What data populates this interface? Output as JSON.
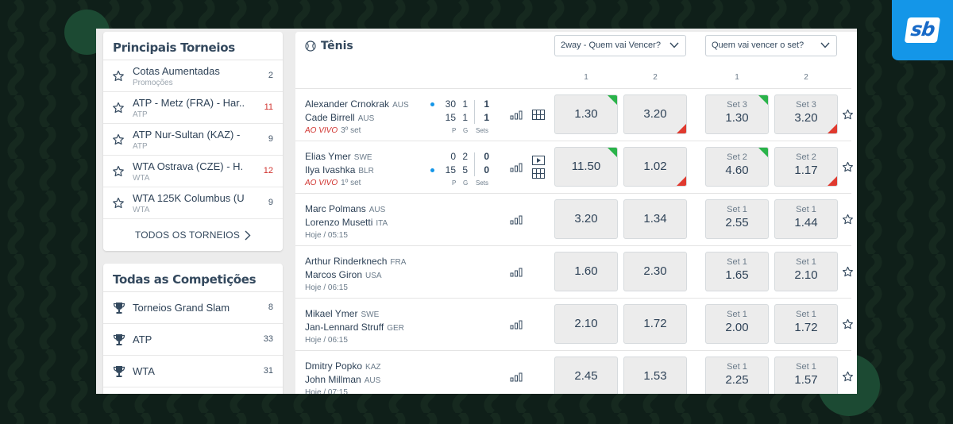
{
  "brand": {
    "logo": "sb",
    "color": "#1496e8"
  },
  "tournaments_panel": {
    "title": "Principais Torneios",
    "items": [
      {
        "name": "Cotas Aumentadas",
        "sub": "Promoções",
        "count": "2",
        "count_color": "normal"
      },
      {
        "name": "ATP - Metz (FRA) - Har...",
        "sub": "ATP",
        "count": "11",
        "count_color": "red"
      },
      {
        "name": "ATP Nur-Sultan (KAZ) - ...",
        "sub": "ATP",
        "count": "9",
        "count_color": "normal"
      },
      {
        "name": "WTA Ostrava (CZE) - H...",
        "sub": "WTA",
        "count": "12",
        "count_color": "red"
      },
      {
        "name": "WTA 125K Columbus (U...",
        "sub": "WTA",
        "count": "9",
        "count_color": "normal"
      }
    ],
    "all_label": "TODOS OS TORNEIOS"
  },
  "competitions_panel": {
    "title": "Todas as Competições",
    "items": [
      {
        "name": "Torneios Grand Slam",
        "count": "8"
      },
      {
        "name": "ATP",
        "count": "33"
      },
      {
        "name": "WTA",
        "count": "31"
      }
    ]
  },
  "main": {
    "title": "Tênis",
    "dropdown1": "2way - Quem vai Vencer?",
    "dropdown2": "Quem vai vencer o set?",
    "col_heads": [
      "1",
      "2",
      "1",
      "2"
    ],
    "score_labels": {
      "p": "P",
      "g": "G",
      "sets": "Sets"
    },
    "matches": [
      {
        "p1": "Alexander Crnokrak",
        "c1": "AUS",
        "p2": "Cade Birrell",
        "c2": "AUS",
        "live": "AO VIVO",
        "status": "3º set",
        "score1": {
          "p": "30",
          "g": "1",
          "s": "1"
        },
        "score2": {
          "p": "15",
          "g": "1",
          "s": "1"
        },
        "serve": 1,
        "odd1": "1.30",
        "odd2": "3.20",
        "set_label": "Set 3",
        "set1": "1.30",
        "set2": "3.20"
      },
      {
        "p1": "Elias Ymer",
        "c1": "SWE",
        "p2": "Ilya Ivashka",
        "c2": "BLR",
        "live": "AO VIVO",
        "status": "1º set",
        "score1": {
          "p": "0",
          "g": "2",
          "s": "0"
        },
        "score2": {
          "p": "15",
          "g": "5",
          "s": "0"
        },
        "serve": 2,
        "odd1": "11.50",
        "odd2": "1.02",
        "set_label": "Set 2",
        "set1": "4.60",
        "set2": "1.17"
      },
      {
        "p1": "Marc Polmans",
        "c1": "AUS",
        "p2": "Lorenzo Musetti",
        "c2": "ITA",
        "status": "Hoje / 05:15",
        "odd1": "3.20",
        "odd2": "1.34",
        "set_label": "Set 1",
        "set1": "2.55",
        "set2": "1.44"
      },
      {
        "p1": "Arthur Rinderknech",
        "c1": "FRA",
        "p2": "Marcos Giron",
        "c2": "USA",
        "status": "Hoje / 06:15",
        "odd1": "1.60",
        "odd2": "2.30",
        "set_label": "Set 1",
        "set1": "1.65",
        "set2": "2.10"
      },
      {
        "p1": "Mikael Ymer",
        "c1": "SWE",
        "p2": "Jan-Lennard Struff",
        "c2": "GER",
        "status": "Hoje / 06:15",
        "odd1": "2.10",
        "odd2": "1.72",
        "set_label": "Set 1",
        "set1": "2.00",
        "set2": "1.72"
      },
      {
        "p1": "Dmitry Popko",
        "c1": "KAZ",
        "p2": "John Millman",
        "c2": "AUS",
        "status": "Hoje / 07:15",
        "odd1": "2.45",
        "odd2": "1.53",
        "set_label": "Set 1",
        "set1": "2.25",
        "set2": "1.57"
      }
    ]
  },
  "colors": {
    "up": "#2ab34a",
    "down": "#e03a2f",
    "live": "#d0312d",
    "accent": "#1496e8"
  },
  "icons": [
    "star-icon",
    "trophy-icon",
    "tennis-ball-icon",
    "stats-icon",
    "grid-icon",
    "play-icon",
    "chevron-down-icon",
    "chevron-right-icon"
  ]
}
